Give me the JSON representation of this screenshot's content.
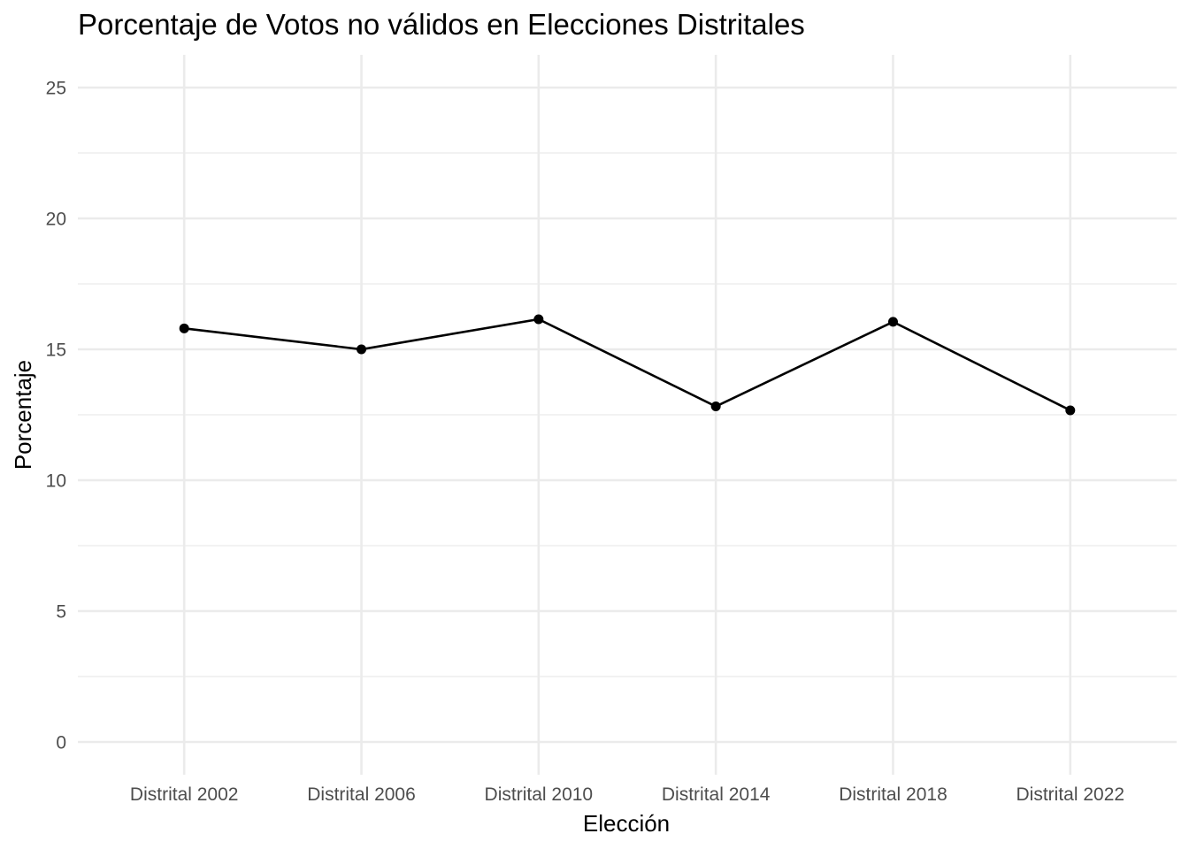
{
  "chart_data": {
    "type": "line",
    "title": "Porcentaje de Votos no válidos en Elecciones Distritales",
    "xlabel": "Elección",
    "ylabel": "Porcentaje",
    "categories": [
      "Distrital 2002",
      "Distrital 2006",
      "Distrital 2010",
      "Distrital 2014",
      "Distrital 2018",
      "Distrital 2022"
    ],
    "values": [
      15.8,
      15.0,
      16.15,
      12.82,
      16.05,
      12.67
    ],
    "ylim": [
      -1.25,
      26.25
    ],
    "yticks": [
      0,
      5,
      10,
      15,
      20,
      25
    ],
    "yminor": [
      2.5,
      7.5,
      12.5,
      17.5,
      22.5
    ],
    "grid": true,
    "legend": "none",
    "colors": {
      "line": "#000000",
      "point": "#000000",
      "grid": "#ebebeb",
      "tick_text": "#4d4d4d",
      "background": "#ffffff"
    }
  }
}
